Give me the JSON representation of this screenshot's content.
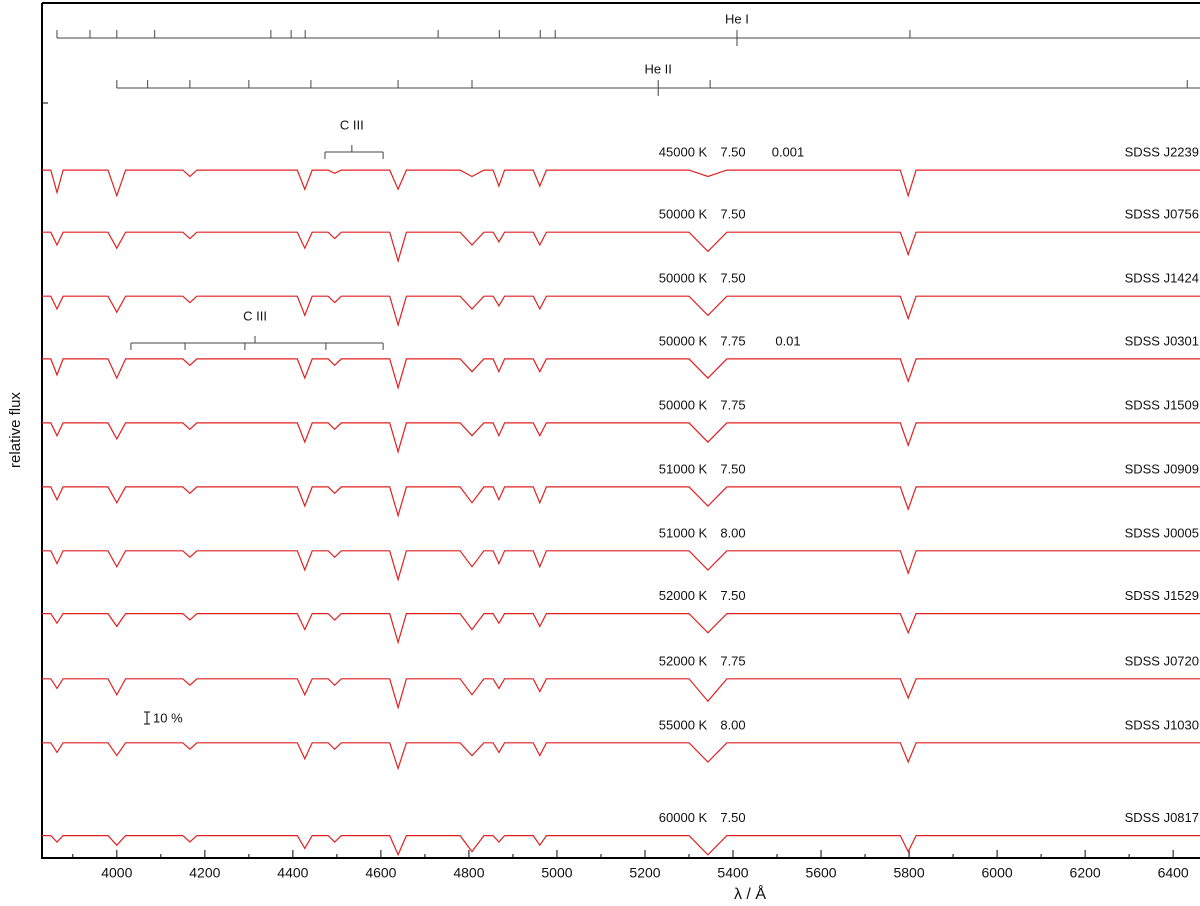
{
  "chart_data": {
    "type": "line",
    "xlabel": "λ / Å",
    "ylabel": "relative flux",
    "xlim": [
      3830,
      6461
    ],
    "ylim": [
      0,
      13.33
    ],
    "xticks": [
      4000,
      4200,
      4400,
      4600,
      4800,
      5000,
      5200,
      5400,
      5600,
      5800,
      6000,
      6200,
      6400
    ],
    "xminor_ticks": [
      3900,
      4100,
      4300,
      4500,
      4700,
      4900,
      5100,
      5300,
      5500,
      5700,
      5900,
      6100,
      6300
    ],
    "color": "#e02020",
    "x": [
      3830,
      3850,
      3864,
      3878,
      3980,
      4000,
      4020,
      4150,
      4166,
      4182,
      4410,
      4427,
      4444,
      4480,
      4495,
      4510,
      4620,
      4639,
      4658,
      4780,
      4807,
      4834,
      4855,
      4868,
      4881,
      4946,
      4961,
      4976,
      5300,
      5343,
      5386,
      5780,
      5798,
      5816,
      6461
    ],
    "series": [
      {
        "name": "SDSS J2239",
        "teff": "45000 K",
        "logg": "7.50",
        "carbon": "0.001",
        "values": [
          10.75,
          10.75,
          10.4,
          10.75,
          10.75,
          10.35,
          10.75,
          10.75,
          10.65,
          10.75,
          10.75,
          10.45,
          10.75,
          10.75,
          10.7,
          10.75,
          10.75,
          10.45,
          10.75,
          10.75,
          10.65,
          10.75,
          10.75,
          10.5,
          10.75,
          10.75,
          10.5,
          10.75,
          10.75,
          10.65,
          10.75,
          10.75,
          10.35,
          10.75,
          10.75
        ]
      },
      {
        "name": "SDSS J0756",
        "teff": "50000 K",
        "logg": "7.50",
        "values": [
          9.78,
          9.78,
          9.58,
          9.78,
          9.78,
          9.53,
          9.78,
          9.78,
          9.68,
          9.78,
          9.78,
          9.53,
          9.78,
          9.78,
          9.68,
          9.78,
          9.78,
          9.33,
          9.78,
          9.78,
          9.58,
          9.78,
          9.78,
          9.63,
          9.78,
          9.78,
          9.58,
          9.78,
          9.78,
          9.48,
          9.78,
          9.78,
          9.43,
          9.78,
          9.78
        ]
      },
      {
        "name": "SDSS J1424",
        "teff": "50000 K",
        "logg": "7.50",
        "values": [
          8.78,
          8.78,
          8.58,
          8.78,
          8.78,
          8.53,
          8.78,
          8.78,
          8.68,
          8.78,
          8.78,
          8.48,
          8.78,
          8.78,
          8.68,
          8.78,
          8.78,
          8.33,
          8.78,
          8.78,
          8.58,
          8.78,
          8.78,
          8.63,
          8.78,
          8.78,
          8.58,
          8.78,
          8.78,
          8.48,
          8.78,
          8.78,
          8.43,
          8.78,
          8.78
        ]
      },
      {
        "name": "SDSS J0301",
        "teff": "50000 K",
        "logg": "7.75",
        "carbon": "0.01",
        "values": [
          7.8,
          7.8,
          7.55,
          7.8,
          7.8,
          7.5,
          7.8,
          7.8,
          7.7,
          7.8,
          7.8,
          7.5,
          7.8,
          7.8,
          7.7,
          7.8,
          7.8,
          7.35,
          7.8,
          7.8,
          7.6,
          7.8,
          7.8,
          7.6,
          7.8,
          7.8,
          7.6,
          7.8,
          7.8,
          7.5,
          7.8,
          7.8,
          7.45,
          7.8,
          7.8
        ]
      },
      {
        "name": "SDSS J1509",
        "teff": "50000 K",
        "logg": "7.75",
        "values": [
          6.8,
          6.8,
          6.6,
          6.8,
          6.8,
          6.55,
          6.8,
          6.8,
          6.7,
          6.8,
          6.8,
          6.5,
          6.8,
          6.8,
          6.7,
          6.8,
          6.8,
          6.35,
          6.8,
          6.8,
          6.6,
          6.8,
          6.8,
          6.6,
          6.8,
          6.8,
          6.6,
          6.8,
          6.8,
          6.5,
          6.8,
          6.8,
          6.45,
          6.8,
          6.8
        ]
      },
      {
        "name": "SDSS J0909",
        "teff": "51000 K",
        "logg": "7.50",
        "values": [
          5.8,
          5.8,
          5.6,
          5.8,
          5.8,
          5.55,
          5.8,
          5.8,
          5.7,
          5.8,
          5.8,
          5.5,
          5.8,
          5.8,
          5.7,
          5.8,
          5.8,
          5.35,
          5.8,
          5.8,
          5.55,
          5.8,
          5.8,
          5.6,
          5.8,
          5.8,
          5.55,
          5.8,
          5.8,
          5.5,
          5.8,
          5.8,
          5.45,
          5.8,
          5.8
        ]
      },
      {
        "name": "SDSS J0005",
        "teff": "51000 K",
        "logg": "8.00",
        "values": [
          4.8,
          4.8,
          4.6,
          4.8,
          4.8,
          4.55,
          4.8,
          4.8,
          4.7,
          4.8,
          4.8,
          4.5,
          4.8,
          4.8,
          4.7,
          4.8,
          4.8,
          4.35,
          4.8,
          4.8,
          4.55,
          4.8,
          4.8,
          4.6,
          4.8,
          4.8,
          4.55,
          4.8,
          4.8,
          4.5,
          4.8,
          4.8,
          4.45,
          4.8,
          4.8
        ]
      },
      {
        "name": "SDSS J1529",
        "teff": "52000 K",
        "logg": "7.50",
        "values": [
          3.82,
          3.82,
          3.67,
          3.82,
          3.82,
          3.62,
          3.82,
          3.82,
          3.72,
          3.82,
          3.82,
          3.57,
          3.82,
          3.82,
          3.72,
          3.82,
          3.82,
          3.37,
          3.82,
          3.82,
          3.57,
          3.82,
          3.82,
          3.67,
          3.82,
          3.82,
          3.62,
          3.82,
          3.82,
          3.52,
          3.82,
          3.82,
          3.52,
          3.82,
          3.82
        ]
      },
      {
        "name": "SDSS J0720",
        "teff": "52000 K",
        "logg": "7.75",
        "values": [
          2.8,
          2.8,
          2.65,
          2.8,
          2.8,
          2.55,
          2.8,
          2.8,
          2.7,
          2.8,
          2.8,
          2.55,
          2.8,
          2.8,
          2.7,
          2.8,
          2.8,
          2.35,
          2.8,
          2.8,
          2.55,
          2.8,
          2.8,
          2.65,
          2.8,
          2.8,
          2.6,
          2.8,
          2.8,
          2.45,
          2.8,
          2.8,
          2.5,
          2.8,
          2.8
        ]
      },
      {
        "name": "SDSS J1030",
        "teff": "55000 K",
        "logg": "8.00",
        "values": [
          1.8,
          1.8,
          1.65,
          1.8,
          1.8,
          1.6,
          1.8,
          1.8,
          1.7,
          1.8,
          1.8,
          1.55,
          1.8,
          1.8,
          1.7,
          1.8,
          1.8,
          1.4,
          1.8,
          1.8,
          1.6,
          1.8,
          1.8,
          1.65,
          1.8,
          1.8,
          1.6,
          1.8,
          1.8,
          1.5,
          1.8,
          1.8,
          1.5,
          1.8,
          1.8
        ]
      },
      {
        "name": "SDSS J0817",
        "teff": "60000 K",
        "logg": "7.50",
        "values": [
          0.35,
          0.35,
          0.25,
          0.35,
          0.35,
          0.2,
          0.35,
          0.35,
          0.25,
          0.35,
          0.35,
          0.15,
          0.35,
          0.35,
          0.25,
          0.35,
          0.35,
          0.05,
          0.35,
          0.35,
          0.1,
          0.35,
          0.35,
          0.25,
          0.35,
          0.35,
          0.2,
          0.35,
          0.35,
          0.05,
          0.35,
          0.35,
          0.1,
          0.35,
          0.35
        ]
      }
    ],
    "line_ids": [
      {
        "label": "He I",
        "positions": [
          3864,
          3939,
          4000,
          4086,
          4350,
          4396,
          4428,
          4730,
          4869,
          4962,
          4996,
          5802
        ],
        "label_position": 5409
      },
      {
        "label": "He II",
        "positions": [
          4000,
          4070,
          4166,
          4300,
          4441,
          4639,
          4807,
          5348,
          6432
        ],
        "label_position": 5230
      }
    ],
    "brackets": [
      {
        "label": "C III",
        "positions": [
          4473,
          4605
        ],
        "label_position": 4534
      },
      {
        "label": "C III",
        "positions": [
          4032,
          4155,
          4291,
          4475,
          4605
        ],
        "label_position": 4314
      }
    ],
    "annotation": "10 %"
  }
}
